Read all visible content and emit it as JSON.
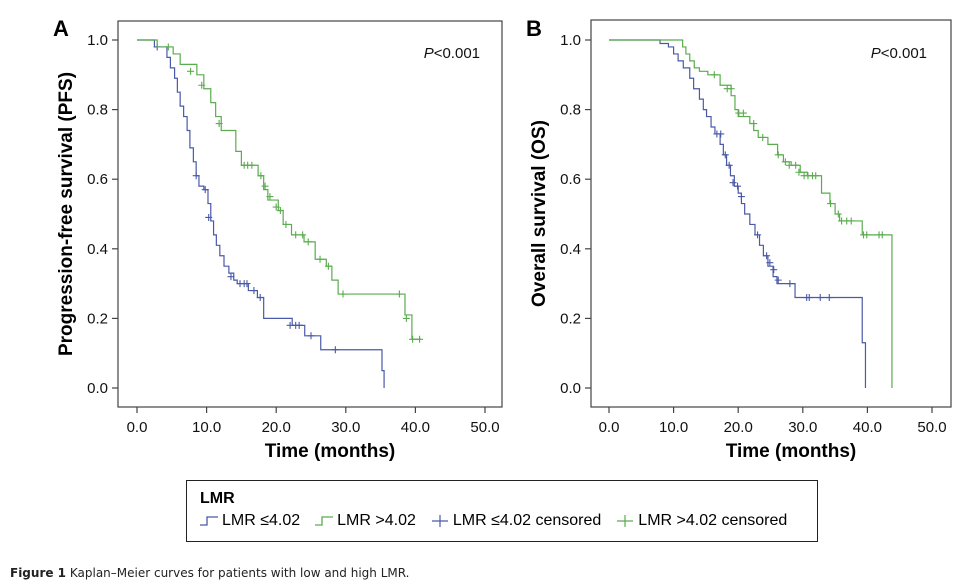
{
  "figure": {
    "caption_label": "Figure 1",
    "caption_text": "Kaplan–Meier curves for patients with low and high LMR."
  },
  "legend": {
    "title": "LMR",
    "items": [
      {
        "label": "LMR ≤4.02",
        "kind": "line",
        "color": "#4a5aa8"
      },
      {
        "label": "LMR >4.02",
        "kind": "line",
        "color": "#5aac4e"
      },
      {
        "label": "LMR ≤4.02 censored",
        "kind": "censor",
        "color": "#4a5aa8"
      },
      {
        "label": "LMR >4.02 censored",
        "kind": "censor",
        "color": "#5aac4e"
      }
    ]
  },
  "chart_data": [
    {
      "type": "line",
      "subtype": "kaplan-meier step",
      "panel": "A",
      "title": "",
      "annotation": {
        "italic": "P",
        "text": "<0.001",
        "placement": "top-right"
      },
      "xlabel": "Time (months)",
      "ylabel": "Progression-free survival (PFS)",
      "xlim": [
        0,
        50
      ],
      "ylim": [
        0,
        1
      ],
      "xticks": [
        "0.0",
        "10.0",
        "20.0",
        "30.0",
        "40.0",
        "50.0"
      ],
      "yticks": [
        "0.0",
        "0.2",
        "0.4",
        "0.6",
        "0.8",
        "1.0"
      ],
      "grid": false,
      "series": [
        {
          "name": "LMR ≤4.02",
          "color": "#4a5aa8",
          "steps": [
            [
              0,
              1.0
            ],
            [
              2.5,
              0.98
            ],
            [
              4.3,
              0.95
            ],
            [
              4.8,
              0.92
            ],
            [
              5.4,
              0.89
            ],
            [
              5.8,
              0.85
            ],
            [
              6.2,
              0.81
            ],
            [
              6.7,
              0.78
            ],
            [
              7.2,
              0.74
            ],
            [
              7.6,
              0.69
            ],
            [
              8.1,
              0.65
            ],
            [
              8.5,
              0.61
            ],
            [
              8.9,
              0.58
            ],
            [
              9.6,
              0.57
            ],
            [
              10.2,
              0.53
            ],
            [
              10.6,
              0.48
            ],
            [
              11.0,
              0.44
            ],
            [
              11.4,
              0.41
            ],
            [
              11.9,
              0.38
            ],
            [
              12.5,
              0.35
            ],
            [
              13.2,
              0.33
            ],
            [
              13.9,
              0.31
            ],
            [
              14.4,
              0.3
            ],
            [
              16.0,
              0.28
            ],
            [
              17.3,
              0.26
            ],
            [
              18.2,
              0.2
            ],
            [
              22.3,
              0.18
            ],
            [
              24.1,
              0.15
            ],
            [
              26.4,
              0.11
            ],
            [
              35.2,
              0.05
            ],
            [
              35.5,
              0.0
            ]
          ],
          "censored": [
            [
              2.9,
              0.98
            ],
            [
              8.5,
              0.61
            ],
            [
              9.8,
              0.57
            ],
            [
              10.3,
              0.49
            ],
            [
              13.5,
              0.32
            ],
            [
              14.8,
              0.3
            ],
            [
              15.4,
              0.3
            ],
            [
              15.8,
              0.3
            ],
            [
              16.8,
              0.28
            ],
            [
              17.7,
              0.26
            ],
            [
              22.0,
              0.18
            ],
            [
              22.8,
              0.18
            ],
            [
              23.3,
              0.18
            ],
            [
              25.0,
              0.15
            ],
            [
              28.5,
              0.11
            ]
          ],
          "end_x": 35.5
        },
        {
          "name": "LMR >4.02",
          "color": "#5aac4e",
          "steps": [
            [
              0,
              1.0
            ],
            [
              2.9,
              0.98
            ],
            [
              5.2,
              0.96
            ],
            [
              6.2,
              0.93
            ],
            [
              8.6,
              0.9
            ],
            [
              9.6,
              0.86
            ],
            [
              10.6,
              0.82
            ],
            [
              11.3,
              0.78
            ],
            [
              12.1,
              0.74
            ],
            [
              14.2,
              0.68
            ],
            [
              15.0,
              0.64
            ],
            [
              17.4,
              0.61
            ],
            [
              18.2,
              0.57
            ],
            [
              18.8,
              0.54
            ],
            [
              20.3,
              0.51
            ],
            [
              21.0,
              0.47
            ],
            [
              22.2,
              0.44
            ],
            [
              24.0,
              0.42
            ],
            [
              25.6,
              0.37
            ],
            [
              27.2,
              0.35
            ],
            [
              28.0,
              0.31
            ],
            [
              28.9,
              0.27
            ],
            [
              38.5,
              0.21
            ],
            [
              39.5,
              0.14
            ]
          ],
          "censored": [
            [
              4.5,
              0.98
            ],
            [
              7.7,
              0.91
            ],
            [
              9.3,
              0.87
            ],
            [
              11.8,
              0.76
            ],
            [
              15.4,
              0.64
            ],
            [
              15.9,
              0.64
            ],
            [
              16.5,
              0.64
            ],
            [
              17.8,
              0.61
            ],
            [
              18.4,
              0.58
            ],
            [
              19.1,
              0.55
            ],
            [
              20.0,
              0.52
            ],
            [
              20.6,
              0.51
            ],
            [
              21.4,
              0.47
            ],
            [
              22.8,
              0.44
            ],
            [
              23.8,
              0.44
            ],
            [
              24.6,
              0.42
            ],
            [
              26.3,
              0.37
            ],
            [
              27.5,
              0.35
            ],
            [
              29.6,
              0.27
            ],
            [
              37.7,
              0.27
            ],
            [
              38.7,
              0.2
            ],
            [
              39.6,
              0.14
            ],
            [
              40.6,
              0.14
            ]
          ],
          "end_x": 40.8
        }
      ]
    },
    {
      "type": "line",
      "subtype": "kaplan-meier step",
      "panel": "B",
      "title": "",
      "annotation": {
        "italic": "P",
        "text": "<0.001",
        "placement": "top-right"
      },
      "xlabel": "Time (months)",
      "ylabel": "Overall survival (OS)",
      "xlim": [
        0,
        50
      ],
      "ylim": [
        0,
        1
      ],
      "xticks": [
        "0.0",
        "10.0",
        "20.0",
        "30.0",
        "40.0",
        "50.0"
      ],
      "yticks": [
        "0.0",
        "0.2",
        "0.4",
        "0.6",
        "0.8",
        "1.0"
      ],
      "grid": false,
      "series": [
        {
          "name": "LMR ≤4.02",
          "color": "#4a5aa8",
          "steps": [
            [
              0,
              1.0
            ],
            [
              7.9,
              0.99
            ],
            [
              9.2,
              0.98
            ],
            [
              10.0,
              0.96
            ],
            [
              10.7,
              0.94
            ],
            [
              11.5,
              0.92
            ],
            [
              12.5,
              0.89
            ],
            [
              13.1,
              0.86
            ],
            [
              14.0,
              0.83
            ],
            [
              14.6,
              0.8
            ],
            [
              15.1,
              0.78
            ],
            [
              15.8,
              0.75
            ],
            [
              16.4,
              0.73
            ],
            [
              17.2,
              0.7
            ],
            [
              17.7,
              0.67
            ],
            [
              18.2,
              0.64
            ],
            [
              18.8,
              0.61
            ],
            [
              19.4,
              0.58
            ],
            [
              20.0,
              0.56
            ],
            [
              20.5,
              0.53
            ],
            [
              21.0,
              0.5
            ],
            [
              21.8,
              0.47
            ],
            [
              22.6,
              0.44
            ],
            [
              23.3,
              0.41
            ],
            [
              23.9,
              0.38
            ],
            [
              24.6,
              0.35
            ],
            [
              25.4,
              0.32
            ],
            [
              26.0,
              0.3
            ],
            [
              28.8,
              0.26
            ],
            [
              39.2,
              0.13
            ],
            [
              39.7,
              0.0
            ]
          ],
          "censored": [
            [
              16.7,
              0.73
            ],
            [
              17.3,
              0.73
            ],
            [
              18.0,
              0.67
            ],
            [
              18.6,
              0.64
            ],
            [
              19.2,
              0.59
            ],
            [
              19.9,
              0.58
            ],
            [
              20.5,
              0.55
            ],
            [
              23.0,
              0.44
            ],
            [
              24.4,
              0.38
            ],
            [
              24.9,
              0.36
            ],
            [
              25.5,
              0.34
            ],
            [
              26.2,
              0.31
            ],
            [
              28.0,
              0.3
            ],
            [
              30.6,
              0.26
            ],
            [
              31.0,
              0.26
            ],
            [
              32.7,
              0.26
            ],
            [
              34.1,
              0.26
            ]
          ],
          "end_x": 39.7
        },
        {
          "name": "LMR >4.02",
          "color": "#5aac4e",
          "steps": [
            [
              0,
              1.0
            ],
            [
              11.4,
              0.98
            ],
            [
              11.9,
              0.96
            ],
            [
              12.5,
              0.94
            ],
            [
              13.2,
              0.92
            ],
            [
              14.0,
              0.91
            ],
            [
              15.3,
              0.9
            ],
            [
              17.2,
              0.87
            ],
            [
              18.9,
              0.84
            ],
            [
              19.5,
              0.8
            ],
            [
              20.0,
              0.78
            ],
            [
              21.8,
              0.76
            ],
            [
              22.4,
              0.74
            ],
            [
              23.1,
              0.72
            ],
            [
              24.6,
              0.7
            ],
            [
              26.1,
              0.67
            ],
            [
              27.0,
              0.65
            ],
            [
              28.2,
              0.64
            ],
            [
              29.6,
              0.62
            ],
            [
              30.7,
              0.61
            ],
            [
              32.9,
              0.56
            ],
            [
              34.2,
              0.53
            ],
            [
              35.0,
              0.5
            ],
            [
              35.7,
              0.48
            ],
            [
              39.2,
              0.44
            ],
            [
              43.8,
              0.0
            ]
          ],
          "censored": [
            [
              16.3,
              0.9
            ],
            [
              18.3,
              0.86
            ],
            [
              18.9,
              0.86
            ],
            [
              20.1,
              0.79
            ],
            [
              20.8,
              0.79
            ],
            [
              22.4,
              0.76
            ],
            [
              23.8,
              0.72
            ],
            [
              26.2,
              0.67
            ],
            [
              27.3,
              0.65
            ],
            [
              27.9,
              0.64
            ],
            [
              28.9,
              0.64
            ],
            [
              29.4,
              0.62
            ],
            [
              30.2,
              0.61
            ],
            [
              30.8,
              0.61
            ],
            [
              31.5,
              0.61
            ],
            [
              32.0,
              0.61
            ],
            [
              34.3,
              0.53
            ],
            [
              35.5,
              0.5
            ],
            [
              36.0,
              0.48
            ],
            [
              36.8,
              0.48
            ],
            [
              37.5,
              0.48
            ],
            [
              39.4,
              0.44
            ],
            [
              39.9,
              0.44
            ],
            [
              41.8,
              0.44
            ],
            [
              42.3,
              0.44
            ]
          ],
          "end_x": 43.8
        }
      ]
    }
  ]
}
